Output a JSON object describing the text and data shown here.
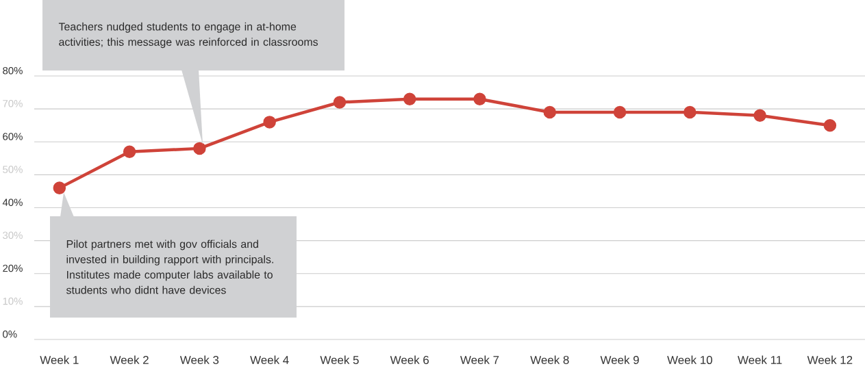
{
  "chart_data": {
    "type": "line",
    "categories": [
      "Week 1",
      "Week 2",
      "Week 3",
      "Week 4",
      "Week 5",
      "Week 6",
      "Week 7",
      "Week 8",
      "Week 9",
      "Week 10",
      "Week 11",
      "Week 12"
    ],
    "series": [
      {
        "color": "#cf4339",
        "values": [
          46,
          57,
          58,
          66,
          72,
          73,
          73,
          69,
          69,
          69,
          68,
          65
        ]
      }
    ],
    "ylim": [
      0,
      80
    ],
    "yticks": [
      {
        "value": 0,
        "label": "0%"
      },
      {
        "value": 10,
        "label": "10%"
      },
      {
        "value": 20,
        "label": "20%"
      },
      {
        "value": 30,
        "label": "30%"
      },
      {
        "value": 40,
        "label": "40%"
      },
      {
        "value": 50,
        "label": "50%"
      },
      {
        "value": 60,
        "label": "60%"
      },
      {
        "value": 70,
        "label": "70%"
      },
      {
        "value": 80,
        "label": "80%"
      }
    ],
    "grid": "y",
    "marker": "circle",
    "line_style": "solid",
    "annotations": [
      "Teachers nudged students to engage in at-home activities; this message was reinforced in classrooms",
      "Pilot partners met with gov officials and invested in building rapport with principals. Institutes made computer labs available to students who didnt have devices"
    ]
  }
}
